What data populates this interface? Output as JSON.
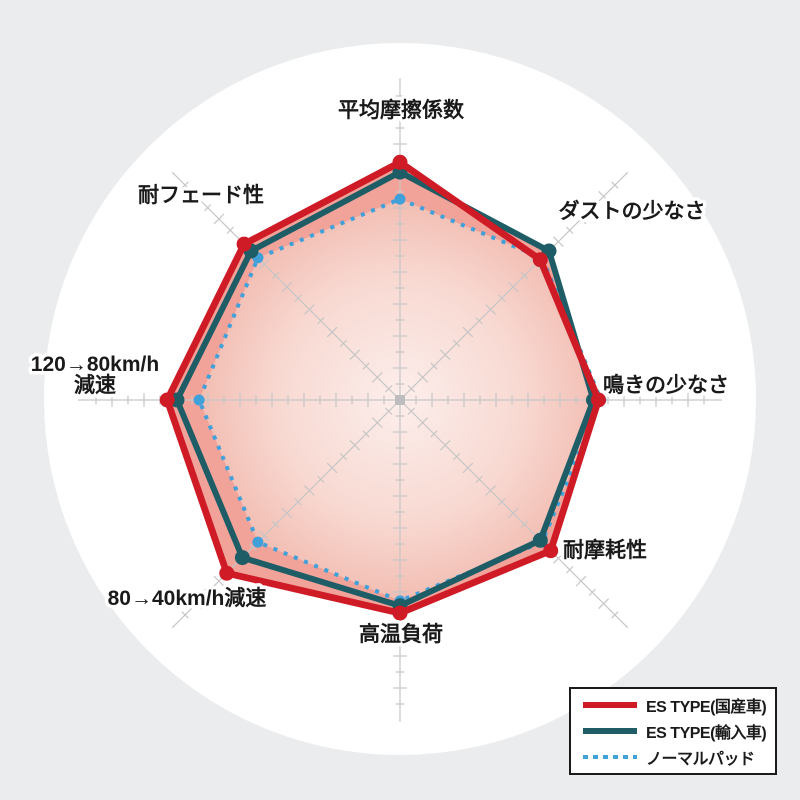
{
  "page": {
    "background_color": "#ebeced",
    "circle_background_color": "#ffffff"
  },
  "chart_data": {
    "type": "radar",
    "title": "",
    "axes_order": "clockwise-from-top",
    "axes": [
      {
        "label": "平均摩擦係数"
      },
      {
        "label": "ダストの少なさ"
      },
      {
        "label": "鳴きの少なさ"
      },
      {
        "label": "耐摩耗性"
      },
      {
        "label": "高温負荷"
      },
      {
        "label": "80→40km/h減速"
      },
      {
        "label": "120→80km/h\n減速"
      },
      {
        "label": "耐フェード性"
      }
    ],
    "scale": {
      "min": 0,
      "max": 100,
      "numeric_tick_labels_visible": false,
      "ticks_per_axis": 19
    },
    "series": [
      {
        "name": "ES TYPE(国産車)",
        "style": "solid",
        "color": "#cf1b26",
        "values": [
          97,
          81,
          81,
          87,
          87,
          100,
          95,
          90
        ]
      },
      {
        "name": "ES TYPE(輸入車)",
        "style": "solid",
        "color": "#1e5c66",
        "values": [
          93,
          86,
          79,
          81,
          84,
          91,
          91,
          86
        ]
      },
      {
        "name": "ノーマルパッド",
        "style": "dashed",
        "color": "#40a0da",
        "values": [
          82,
          82,
          82,
          82,
          82,
          82,
          82,
          82
        ]
      }
    ],
    "fill": {
      "outer_band_color": "#f1a399",
      "inner_gradient_center": "#fceeeb",
      "inner_gradient_mid": "#f8d9d2",
      "inner_gradient_edge": "#f2bdb2"
    },
    "axis_line_color": "#c6c6c6",
    "center_marker_color": "#bdbdbd",
    "label_color": "#1a1a1a",
    "legend_position": "bottom-right"
  },
  "legend": {
    "items": [
      {
        "label": "ES TYPE(国産車)"
      },
      {
        "label": "ES TYPE(輸入車)"
      },
      {
        "label": "ノーマルパッド"
      }
    ]
  }
}
